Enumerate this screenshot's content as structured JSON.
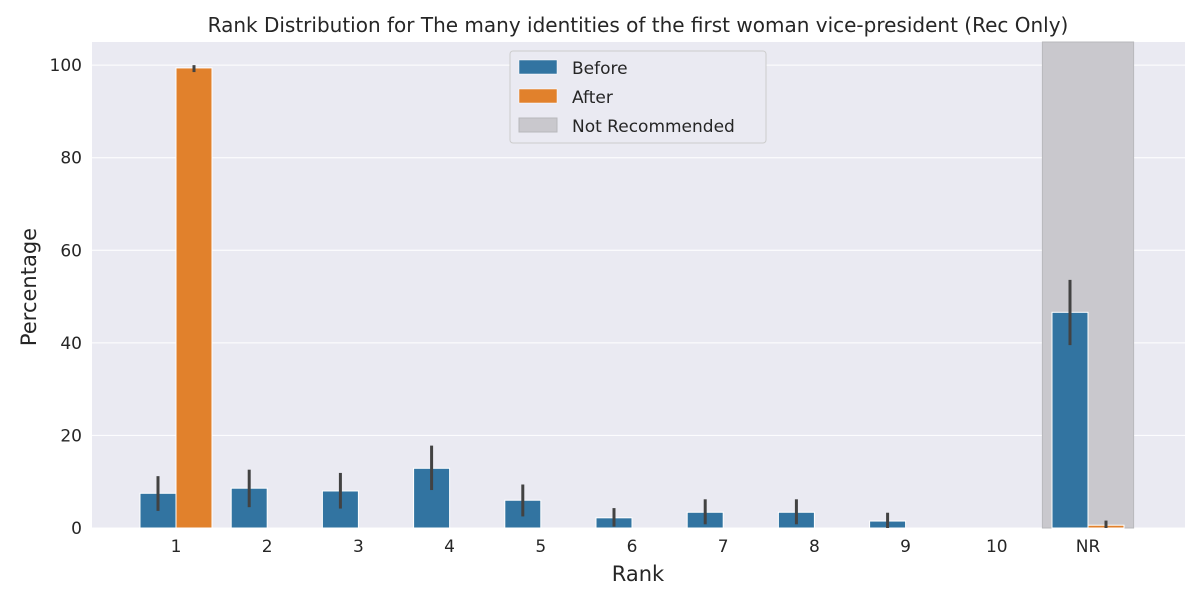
{
  "chart_data": {
    "type": "bar",
    "title": "Rank Distribution for The many identities of the first woman vice-president (Rec Only)",
    "xlabel": "Rank",
    "ylabel": "Percentage",
    "categories": [
      "1",
      "2",
      "3",
      "4",
      "5",
      "6",
      "7",
      "8",
      "9",
      "10",
      "NR"
    ],
    "ylim": [
      0,
      105
    ],
    "yticks": [
      0,
      20,
      40,
      60,
      80,
      100
    ],
    "grid": true,
    "legend_position": "top-center",
    "series": [
      {
        "name": "Before",
        "color": "#3274a1",
        "values": [
          7.5,
          8.6,
          8.0,
          12.9,
          6.0,
          2.2,
          3.4,
          3.4,
          1.5,
          0,
          46.6
        ],
        "error_low": [
          3.7,
          4.5,
          4.2,
          8.2,
          2.5,
          0.3,
          0.8,
          0.8,
          0,
          0,
          39.5
        ],
        "error_high": [
          11.2,
          12.6,
          11.9,
          17.8,
          9.4,
          4.3,
          6.2,
          6.2,
          3.3,
          0,
          53.6
        ]
      },
      {
        "name": "After",
        "color": "#e1812c",
        "values": [
          99.4,
          0,
          0,
          0,
          0,
          0,
          0,
          0,
          0,
          0,
          0.6
        ],
        "error_low": [
          98.5,
          0,
          0,
          0,
          0,
          0,
          0,
          0,
          0,
          0,
          0
        ],
        "error_high": [
          100,
          0,
          0,
          0,
          0,
          0,
          0,
          0,
          0,
          0,
          1.6
        ]
      }
    ],
    "highlight": {
      "label": "Not Recommended",
      "category": "NR",
      "color": "#c9c8cd"
    }
  }
}
